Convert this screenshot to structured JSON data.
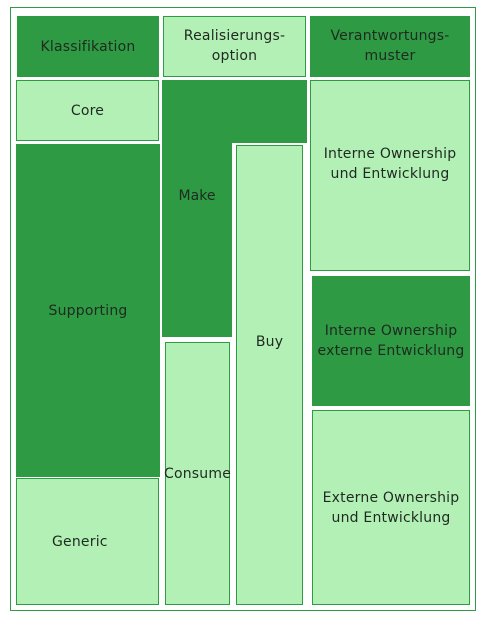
{
  "colors": {
    "dark_green": "#2e9a44",
    "light_green": "#b3f0b6",
    "border": "#2e9a44",
    "text": "#1f2a20"
  },
  "headers": {
    "klassifikation": "Klassifikation",
    "realisierungsoption": "Realisierungs-\noption",
    "verantwortungsmuster": "Verantwortungs-\nmuster"
  },
  "klassifikation": {
    "core": "Core",
    "supporting": "Supporting",
    "generic": "Generic"
  },
  "realisierung": {
    "make": "Make",
    "buy": "Buy",
    "consume": "Consume"
  },
  "verantwortung": {
    "intern_intern": "Interne Ownership\nund Entwicklung",
    "intern_extern": "Interne Ownership\nexterne Entwicklung",
    "extern_extern": "Externe Ownership\nund Entwicklung"
  }
}
